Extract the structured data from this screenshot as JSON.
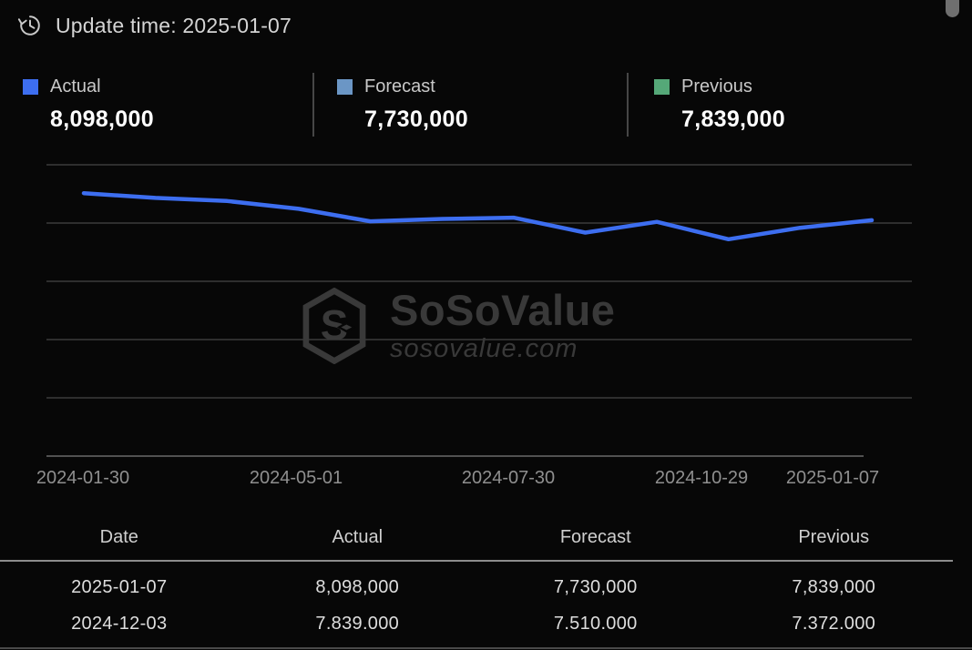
{
  "header": {
    "update_time": "Update time: 2025-01-07"
  },
  "legend": [
    {
      "label": "Actual",
      "value": "8,098,000",
      "color": "#3d6ef0"
    },
    {
      "label": "Forecast",
      "value": "7,730,000",
      "color": "#6b96c5"
    },
    {
      "label": "Previous",
      "value": "7,839,000",
      "color": "#55a878"
    }
  ],
  "chart_data": {
    "type": "line",
    "title": "",
    "xlabel": "",
    "ylabel": "",
    "ylim": [
      0,
      10000000
    ],
    "gridline_step": 2000000,
    "grid": true,
    "legend_position": "top",
    "x_tick_labels": [
      "2024-01-30",
      "2024-05-01",
      "2024-07-30",
      "2024-10-29",
      "2025-01-07"
    ],
    "series": [
      {
        "name": "Actual",
        "color": "#3d6ef0",
        "x": [
          "2024-01-30",
          "2024-03-06",
          "2024-04-02",
          "2024-05-01",
          "2024-06-04",
          "2024-07-02",
          "2024-07-30",
          "2024-09-04",
          "2024-10-01",
          "2024-10-29",
          "2024-12-03",
          "2025-01-07"
        ],
        "values": [
          9026000,
          8863000,
          8756000,
          8488000,
          8059000,
          8140000,
          8184000,
          7673000,
          8040000,
          7443000,
          7839000,
          8098000
        ],
        "note": "intermediate values estimated from unlabeled gridlines (0-10M, step 2M)"
      }
    ]
  },
  "watermark": {
    "brand": "SoSoValue",
    "domain": "sosovalue.com"
  },
  "table": {
    "headers": [
      "Date",
      "Actual",
      "Forecast",
      "Previous"
    ],
    "rows": [
      [
        "2025-01-07",
        "8,098,000",
        "7,730,000",
        "7,839,000"
      ],
      [
        "2024-12-03",
        "7.839.000",
        "7.510.000",
        "7.372.000"
      ]
    ]
  }
}
